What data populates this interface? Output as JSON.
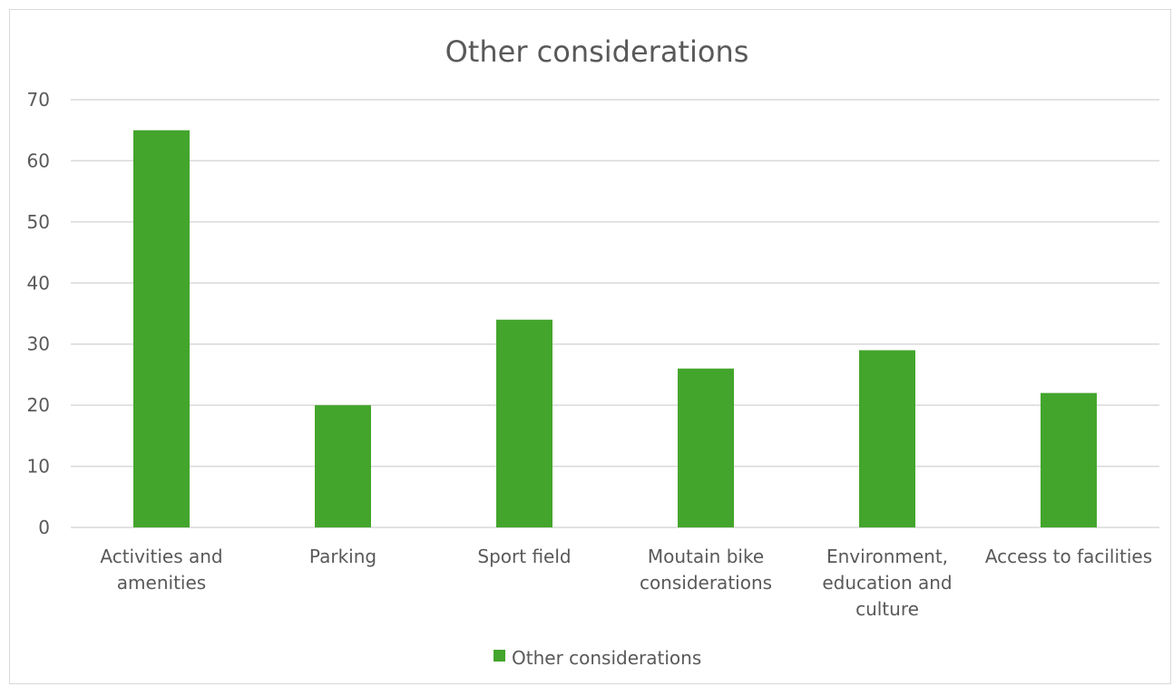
{
  "chart_data": {
    "type": "bar",
    "title": "Other considerations",
    "categories": [
      [
        "Activities and",
        "amenities"
      ],
      [
        "Parking"
      ],
      [
        "Sport field"
      ],
      [
        "Moutain bike",
        "considerations"
      ],
      [
        "Environment,",
        "education and",
        "culture"
      ],
      [
        "Access to facilities"
      ]
    ],
    "series": [
      {
        "name": "Other considerations",
        "values": [
          65,
          20,
          34,
          26,
          29,
          22
        ],
        "color": "#43a52c"
      }
    ],
    "ylim": [
      0,
      70
    ],
    "yticks": [
      0,
      10,
      20,
      30,
      40,
      50,
      60,
      70
    ],
    "grid": true,
    "legend_position": "bottom"
  }
}
